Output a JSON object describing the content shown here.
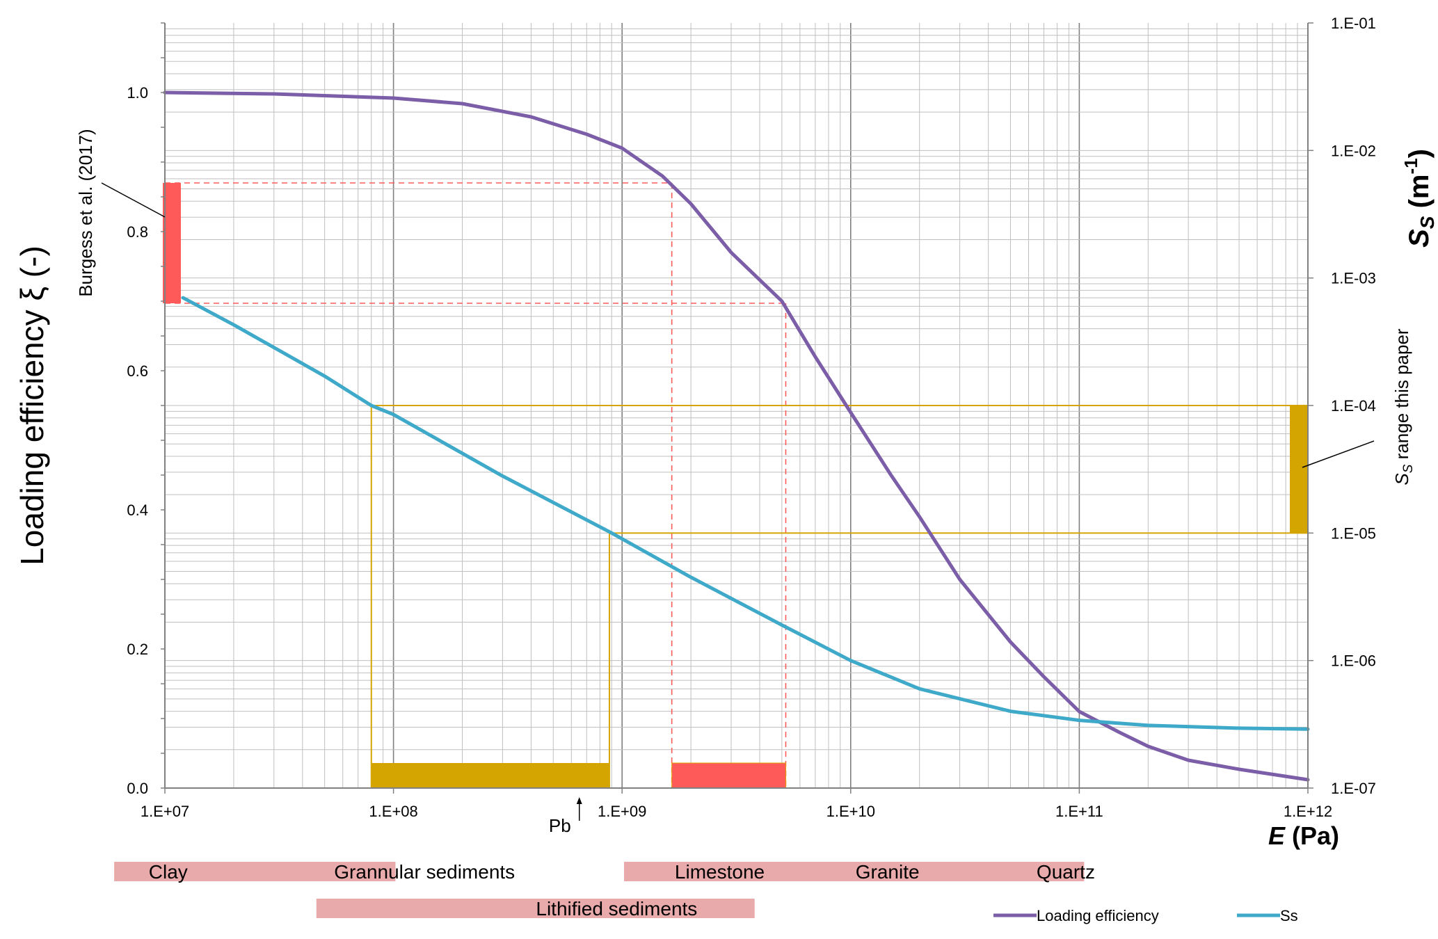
{
  "chart_data": {
    "type": "line",
    "x_scale": "log",
    "y2_scale": "log",
    "xlim": [
      10000000.0,
      1000000000000.0
    ],
    "ylim": [
      0,
      1.1
    ],
    "y2lim": [
      1e-07,
      0.1
    ],
    "grid": true,
    "xlabel": {
      "italic": "E",
      "rest": " (Pa)"
    },
    "ylabel": {
      "pre": "Loading efficiency ",
      "sym": "ξ",
      "post": " (-)"
    },
    "y2label": {
      "sym": "S",
      "sub": "S",
      "unit_pre": " (m",
      "unit_sup": "-1",
      "unit_post": ")"
    },
    "x_ticks": [
      {
        "value": 10000000.0,
        "label": "1.E+07"
      },
      {
        "value": 100000000.0,
        "label": "1.E+08"
      },
      {
        "value": 1000000000.0,
        "label": "1.E+09"
      },
      {
        "value": 10000000000.0,
        "label": "1.E+10"
      },
      {
        "value": 100000000000.0,
        "label": "1.E+11"
      },
      {
        "value": 1000000000000.0,
        "label": "1.E+12"
      }
    ],
    "y_ticks": [
      {
        "value": 0.0,
        "label": "0.0"
      },
      {
        "value": 0.2,
        "label": "0.2"
      },
      {
        "value": 0.4,
        "label": "0.4"
      },
      {
        "value": 0.6,
        "label": "0.6"
      },
      {
        "value": 0.8,
        "label": "0.8"
      },
      {
        "value": 1.0,
        "label": "1.0"
      }
    ],
    "y2_ticks": [
      {
        "value": 0.1,
        "label": "1.E-01"
      },
      {
        "value": 0.01,
        "label": "1.E-02"
      },
      {
        "value": 0.001,
        "label": "1.E-03"
      },
      {
        "value": 0.0001,
        "label": "1.E-04"
      },
      {
        "value": 1e-05,
        "label": "1.E-05"
      },
      {
        "value": 1e-06,
        "label": "1.E-06"
      },
      {
        "value": 1e-07,
        "label": "1.E-07"
      }
    ],
    "series": [
      {
        "name": "Loading efficiency",
        "axis": "left",
        "color": "#7b5ea7",
        "x": [
          10000000.0,
          30000000.0,
          100000000.0,
          200000000.0,
          400000000.0,
          700000000.0,
          1000000000.0,
          1500000000.0,
          2000000000.0,
          3000000000.0,
          5000000000.0,
          7000000000.0,
          10000000000.0,
          15000000000.0,
          20000000000.0,
          30000000000.0,
          50000000000.0,
          70000000000.0,
          100000000000.0,
          150000000000.0,
          200000000000.0,
          300000000000.0,
          500000000000.0,
          1000000000000.0
        ],
        "y": [
          1.0,
          0.998,
          0.992,
          0.984,
          0.965,
          0.94,
          0.92,
          0.88,
          0.84,
          0.77,
          0.7,
          0.62,
          0.54,
          0.45,
          0.39,
          0.3,
          0.21,
          0.16,
          0.11,
          0.08,
          0.06,
          0.04,
          0.027,
          0.012
        ]
      },
      {
        "name": "Ss",
        "axis": "right",
        "color": "#3fa9c9",
        "x": [
          12000000.0,
          20000000.0,
          50000000.0,
          80000000.0,
          100000000.0,
          300000000.0,
          900000000.0,
          1000000000.0,
          2000000000.0,
          5000000000.0,
          10000000000.0,
          20000000000.0,
          50000000000.0,
          100000000000.0,
          200000000000.0,
          500000000000.0,
          1000000000000.0
        ],
        "y": [
          0.0007,
          0.00043,
          0.00017,
          0.0001,
          8.5e-05,
          2.8e-05,
          1e-05,
          9e-06,
          4.5e-06,
          1.9e-06,
          1e-06,
          6e-07,
          4e-07,
          3.4e-07,
          3.1e-07,
          2.95e-07,
          2.9e-07
        ]
      }
    ],
    "legend": [
      {
        "label": "Loading efficiency",
        "color": "#7b5ea7"
      },
      {
        "label": "Ss",
        "color": "#3fa9c9"
      }
    ],
    "annotations": {
      "burgess_label": "Burgess et al. (2017)",
      "burgess_range": [
        0.697,
        0.87
      ],
      "burgess_e_range": [
        1650000000.0,
        5200000000.0
      ],
      "ss_range_label": {
        "sym": "S",
        "sub": "S",
        "rest": " range this paper"
      },
      "ss_range": [
        1e-05,
        0.0001
      ],
      "ss_e_range": [
        80000000.0,
        880000000.0
      ],
      "pb_label": "Pb",
      "pb_value": 650000000.0
    },
    "material_bands": [
      {
        "row": 1,
        "range": [
          6000000.0,
          102000000.0
        ],
        "labels": [
          {
            "text": "Clay",
            "at": 8500000.0
          },
          {
            "text": "Grannular sediments",
            "at": 55000000.0
          }
        ]
      },
      {
        "row": 1,
        "range": [
          1020000000.0,
          105000000000.0
        ],
        "labels": [
          {
            "text": "Limestone",
            "at": 1700000000.0
          },
          {
            "text": "Granite",
            "at": 10500000000.0
          },
          {
            "text": "Quartz",
            "at": 65000000000.0
          }
        ]
      },
      {
        "row": 2,
        "range": [
          46000000.0,
          3800000000.0
        ],
        "labels": [
          {
            "text": "Lithified sediments",
            "at": 420000000.0
          }
        ]
      }
    ],
    "colors": {
      "burgess": "#ff5a5a",
      "ss_range": "#d4a500",
      "bands": "#e8aaaa",
      "grid": "#bfbfbf",
      "grid_major": "#7f7f7f"
    }
  }
}
